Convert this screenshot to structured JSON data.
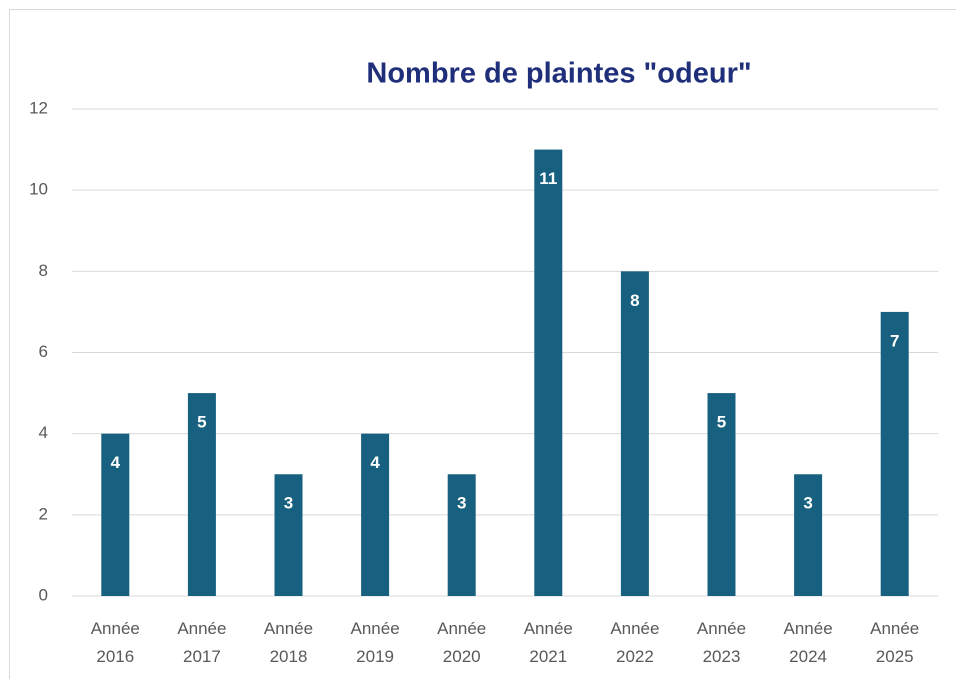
{
  "chart_data": {
    "type": "bar",
    "title": "Nombre de plaintes \"odeur\"",
    "categories": [
      "Année 2016",
      "Année 2017",
      "Année 2018",
      "Année 2019",
      "Année 2020",
      "Année 2021",
      "Année 2022",
      "Année 2023",
      "Année 2024",
      "Année 2025"
    ],
    "values": [
      4,
      5,
      3,
      4,
      3,
      11,
      8,
      5,
      3,
      7
    ],
    "color": "#17607f",
    "ylim": [
      0,
      12
    ],
    "yticks": [
      0,
      2,
      4,
      6,
      8,
      10,
      12
    ],
    "grid": true
  }
}
